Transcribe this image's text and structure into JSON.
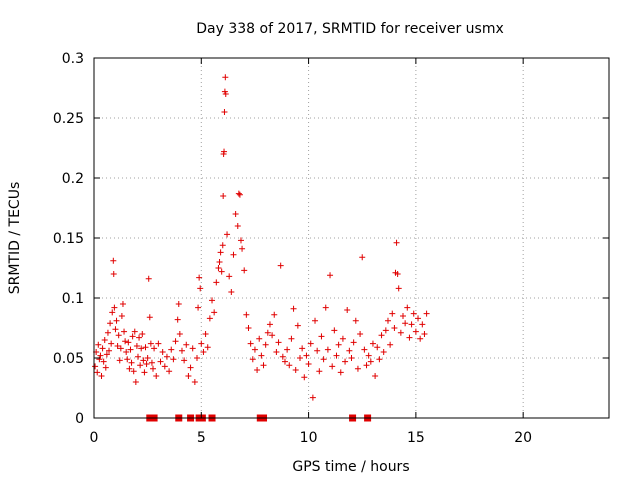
{
  "chart_data": {
    "type": "scatter",
    "title": "Day 338 of 2017, SRMTID for receiver usmx",
    "xlabel": "GPS time / hours",
    "ylabel": "SRMTID / TECUs",
    "xlim": [
      0,
      24
    ],
    "ylim": [
      0,
      0.3
    ],
    "xticks": [
      0,
      5,
      10,
      15,
      20
    ],
    "yticks": [
      0,
      0.05,
      0.1,
      0.15,
      0.2,
      0.25,
      0.3
    ],
    "xtick_labels": [
      "0",
      "5",
      "10",
      "15",
      "20"
    ],
    "ytick_labels": [
      "0",
      "0.05",
      "0.1",
      "0.15",
      "0.2",
      "0.25",
      "0.3"
    ],
    "grid": true,
    "marker": "+",
    "color": "#e00000",
    "series": [
      {
        "name": "SRMTID",
        "points": [
          [
            0.05,
            0.043
          ],
          [
            0.1,
            0.055
          ],
          [
            0.15,
            0.038
          ],
          [
            0.2,
            0.061
          ],
          [
            0.25,
            0.049
          ],
          [
            0.3,
            0.052
          ],
          [
            0.35,
            0.035
          ],
          [
            0.4,
            0.058
          ],
          [
            0.45,
            0.047
          ],
          [
            0.5,
            0.065
          ],
          [
            0.55,
            0.042
          ],
          [
            0.6,
            0.053
          ],
          [
            0.65,
            0.071
          ],
          [
            0.7,
            0.056
          ],
          [
            0.75,
            0.079
          ],
          [
            0.8,
            0.062
          ],
          [
            0.85,
            0.088
          ],
          [
            0.9,
            0.131
          ],
          [
            0.92,
            0.12
          ],
          [
            0.95,
            0.092
          ],
          [
            1.0,
            0.074
          ],
          [
            1.05,
            0.081
          ],
          [
            1.1,
            0.06
          ],
          [
            1.15,
            0.069
          ],
          [
            1.2,
            0.048
          ],
          [
            1.25,
            0.058
          ],
          [
            1.3,
            0.085
          ],
          [
            1.35,
            0.095
          ],
          [
            1.4,
            0.072
          ],
          [
            1.45,
            0.064
          ],
          [
            1.5,
            0.055
          ],
          [
            1.55,
            0.049
          ],
          [
            1.6,
            0.063
          ],
          [
            1.65,
            0.041
          ],
          [
            1.7,
            0.057
          ],
          [
            1.75,
            0.046
          ],
          [
            1.8,
            0.068
          ],
          [
            1.85,
            0.039
          ],
          [
            1.9,
            0.072
          ],
          [
            1.95,
            0.03
          ],
          [
            2.0,
            0.06
          ],
          [
            2.05,
            0.051
          ],
          [
            2.1,
            0.067
          ],
          [
            2.15,
            0.044
          ],
          [
            2.2,
            0.058
          ],
          [
            2.25,
            0.07
          ],
          [
            2.3,
            0.048
          ],
          [
            2.35,
            0.038
          ],
          [
            2.4,
            0.059
          ],
          [
            2.45,
            0.045
          ],
          [
            2.5,
            0.05
          ],
          [
            2.55,
            0.116
          ],
          [
            2.6,
            0.084
          ],
          [
            2.65,
            0.062
          ],
          [
            2.7,
            0.046
          ],
          [
            2.75,
            0.041
          ],
          [
            2.8,
            0.058
          ],
          [
            2.9,
            0.035
          ],
          [
            3.0,
            0.062
          ],
          [
            3.1,
            0.047
          ],
          [
            3.2,
            0.055
          ],
          [
            3.3,
            0.043
          ],
          [
            3.4,
            0.051
          ],
          [
            3.5,
            0.039
          ],
          [
            3.6,
            0.057
          ],
          [
            3.7,
            0.049
          ],
          [
            3.8,
            0.064
          ],
          [
            3.9,
            0.082
          ],
          [
            3.95,
            0.095
          ],
          [
            4.0,
            0.07
          ],
          [
            4.1,
            0.056
          ],
          [
            4.2,
            0.048
          ],
          [
            4.3,
            0.061
          ],
          [
            4.4,
            0.035
          ],
          [
            4.5,
            0.042
          ],
          [
            4.6,
            0.058
          ],
          [
            4.7,
            0.03
          ],
          [
            4.8,
            0.05
          ],
          [
            4.85,
            0.092
          ],
          [
            4.9,
            0.117
          ],
          [
            4.95,
            0.108
          ],
          [
            5.0,
            0.062
          ],
          [
            5.1,
            0.055
          ],
          [
            5.2,
            0.07
          ],
          [
            5.3,
            0.059
          ],
          [
            5.4,
            0.083
          ],
          [
            5.5,
            0.098
          ],
          [
            5.6,
            0.088
          ],
          [
            5.7,
            0.113
          ],
          [
            5.8,
            0.125
          ],
          [
            5.85,
            0.13
          ],
          [
            5.9,
            0.138
          ],
          [
            5.95,
            0.122
          ],
          [
            6.0,
            0.144
          ],
          [
            6.02,
            0.185
          ],
          [
            6.04,
            0.22
          ],
          [
            6.06,
            0.222
          ],
          [
            6.08,
            0.255
          ],
          [
            6.1,
            0.272
          ],
          [
            6.12,
            0.284
          ],
          [
            6.14,
            0.27
          ],
          [
            6.2,
            0.153
          ],
          [
            6.3,
            0.118
          ],
          [
            6.4,
            0.105
          ],
          [
            6.5,
            0.136
          ],
          [
            6.6,
            0.17
          ],
          [
            6.7,
            0.16
          ],
          [
            6.75,
            0.187
          ],
          [
            6.8,
            0.186
          ],
          [
            6.85,
            0.148
          ],
          [
            6.9,
            0.141
          ],
          [
            7.0,
            0.123
          ],
          [
            7.1,
            0.086
          ],
          [
            7.2,
            0.075
          ],
          [
            7.3,
            0.062
          ],
          [
            7.4,
            0.049
          ],
          [
            7.5,
            0.057
          ],
          [
            7.6,
            0.04
          ],
          [
            7.7,
            0.066
          ],
          [
            7.8,
            0.052
          ],
          [
            7.9,
            0.044
          ],
          [
            8.0,
            0.061
          ],
          [
            8.1,
            0.071
          ],
          [
            8.2,
            0.078
          ],
          [
            8.3,
            0.069
          ],
          [
            8.4,
            0.086
          ],
          [
            8.5,
            0.055
          ],
          [
            8.6,
            0.063
          ],
          [
            8.7,
            0.127
          ],
          [
            8.8,
            0.051
          ],
          [
            8.9,
            0.047
          ],
          [
            9.0,
            0.057
          ],
          [
            9.1,
            0.044
          ],
          [
            9.2,
            0.066
          ],
          [
            9.3,
            0.091
          ],
          [
            9.4,
            0.04
          ],
          [
            9.5,
            0.077
          ],
          [
            9.6,
            0.05
          ],
          [
            9.7,
            0.058
          ],
          [
            9.8,
            0.034
          ],
          [
            9.9,
            0.052
          ],
          [
            10.0,
            0.045
          ],
          [
            10.1,
            0.062
          ],
          [
            10.2,
            0.017
          ],
          [
            10.3,
            0.081
          ],
          [
            10.4,
            0.056
          ],
          [
            10.5,
            0.039
          ],
          [
            10.6,
            0.068
          ],
          [
            10.7,
            0.049
          ],
          [
            10.8,
            0.092
          ],
          [
            10.9,
            0.057
          ],
          [
            11.0,
            0.119
          ],
          [
            11.1,
            0.043
          ],
          [
            11.2,
            0.073
          ],
          [
            11.3,
            0.052
          ],
          [
            11.4,
            0.061
          ],
          [
            11.5,
            0.038
          ],
          [
            11.6,
            0.066
          ],
          [
            11.7,
            0.047
          ],
          [
            11.8,
            0.09
          ],
          [
            11.9,
            0.056
          ],
          [
            12.0,
            0.05
          ],
          [
            12.1,
            0.063
          ],
          [
            12.2,
            0.081
          ],
          [
            12.3,
            0.041
          ],
          [
            12.4,
            0.07
          ],
          [
            12.5,
            0.134
          ],
          [
            12.6,
            0.057
          ],
          [
            12.7,
            0.044
          ],
          [
            12.8,
            0.052
          ],
          [
            12.9,
            0.047
          ],
          [
            13.0,
            0.062
          ],
          [
            13.1,
            0.035
          ],
          [
            13.2,
            0.059
          ],
          [
            13.3,
            0.049
          ],
          [
            13.4,
            0.069
          ],
          [
            13.5,
            0.055
          ],
          [
            13.6,
            0.073
          ],
          [
            13.7,
            0.081
          ],
          [
            13.8,
            0.061
          ],
          [
            13.9,
            0.087
          ],
          [
            14.0,
            0.075
          ],
          [
            14.05,
            0.121
          ],
          [
            14.1,
            0.146
          ],
          [
            14.15,
            0.12
          ],
          [
            14.2,
            0.108
          ],
          [
            14.3,
            0.071
          ],
          [
            14.4,
            0.085
          ],
          [
            14.5,
            0.079
          ],
          [
            14.6,
            0.092
          ],
          [
            14.7,
            0.067
          ],
          [
            14.8,
            0.078
          ],
          [
            14.9,
            0.087
          ],
          [
            15.0,
            0.072
          ],
          [
            15.1,
            0.083
          ],
          [
            15.2,
            0.066
          ],
          [
            15.3,
            0.078
          ],
          [
            15.4,
            0.07
          ],
          [
            15.5,
            0.087
          ]
        ]
      },
      {
        "name": "gaps",
        "marker": "square",
        "x": [
          2.6,
          2.8,
          3.95,
          4.5,
          4.9,
          5.05,
          5.5,
          7.75,
          7.9,
          12.05,
          12.75
        ],
        "y": [
          0,
          0,
          0,
          0,
          0,
          0,
          0,
          0,
          0,
          0,
          0
        ]
      }
    ]
  }
}
